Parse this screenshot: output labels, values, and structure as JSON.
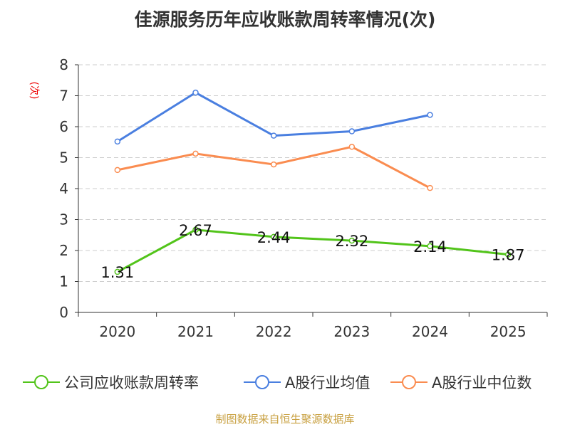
{
  "chart_data": {
    "type": "line",
    "title": "佳源服务历年应收账款周转率情况(次)",
    "ylabel": "(次)",
    "categories": [
      "2020",
      "2021",
      "2022",
      "2023",
      "2024",
      "2025"
    ],
    "ylim": [
      0,
      8
    ],
    "yticks": [
      "0",
      "1",
      "2",
      "3",
      "4",
      "5",
      "6",
      "7",
      "8"
    ],
    "grid": true,
    "legend_position": "bottom",
    "series": [
      {
        "name": "公司应收账款周转率",
        "color": "#52c41a",
        "values": [
          1.31,
          2.67,
          2.44,
          2.32,
          2.14,
          1.87
        ],
        "labels": [
          "1.31",
          "2.67",
          "2.44",
          "2.32",
          "2.14",
          "1.87"
        ]
      },
      {
        "name": "A股行业均值",
        "color": "#4a7fe0",
        "values": [
          5.52,
          7.1,
          5.71,
          5.85,
          6.38,
          null
        ]
      },
      {
        "name": "A股行业中位数",
        "color": "#fa8c50",
        "values": [
          4.6,
          5.13,
          4.78,
          5.35,
          4.02,
          null
        ]
      }
    ]
  },
  "source": "制图数据来自恒生聚源数据库"
}
